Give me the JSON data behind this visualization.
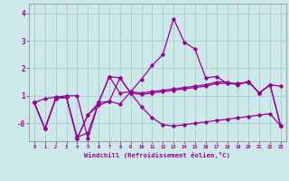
{
  "xlabel": "Windchill (Refroidissement éolien,°C)",
  "background_color": "#cce8e8",
  "grid_color": "#aacccc",
  "line_color": "#990099",
  "x_ticks": [
    0,
    1,
    2,
    3,
    4,
    5,
    6,
    7,
    8,
    9,
    10,
    11,
    12,
    13,
    14,
    15,
    16,
    17,
    18,
    19,
    20,
    21,
    22,
    23
  ],
  "ylim": [
    -0.65,
    4.35
  ],
  "xlim": [
    -0.5,
    23.5
  ],
  "yticks": [
    4,
    3,
    2,
    1,
    "-0"
  ],
  "ytick_vals": [
    4,
    3,
    2,
    1,
    0
  ],
  "curves": [
    [
      0.75,
      0.9,
      0.95,
      1.0,
      1.0,
      -0.55,
      0.75,
      1.7,
      1.65,
      1.1,
      1.05,
      1.1,
      1.15,
      1.2,
      1.25,
      1.3,
      1.35,
      1.45,
      1.45,
      1.42,
      1.5,
      1.1,
      1.4,
      1.35
    ],
    [
      0.75,
      -0.2,
      0.9,
      0.95,
      -0.5,
      -0.35,
      0.75,
      1.7,
      1.1,
      1.15,
      1.6,
      2.1,
      2.5,
      3.8,
      2.95,
      2.7,
      1.65,
      1.7,
      1.45,
      1.45,
      1.5,
      1.1,
      1.4,
      -0.1
    ],
    [
      0.75,
      -0.2,
      0.9,
      0.95,
      -0.55,
      0.3,
      0.75,
      0.8,
      0.7,
      1.15,
      1.1,
      1.15,
      1.2,
      1.25,
      1.3,
      1.35,
      1.4,
      1.5,
      1.5,
      1.4,
      1.52,
      1.1,
      1.4,
      -0.1
    ],
    [
      0.75,
      -0.2,
      0.9,
      0.95,
      -0.55,
      0.3,
      0.65,
      0.8,
      1.65,
      1.1,
      0.6,
      0.2,
      -0.05,
      -0.1,
      -0.05,
      0.0,
      0.05,
      0.1,
      0.15,
      0.2,
      0.25,
      0.3,
      0.35,
      -0.1
    ]
  ]
}
